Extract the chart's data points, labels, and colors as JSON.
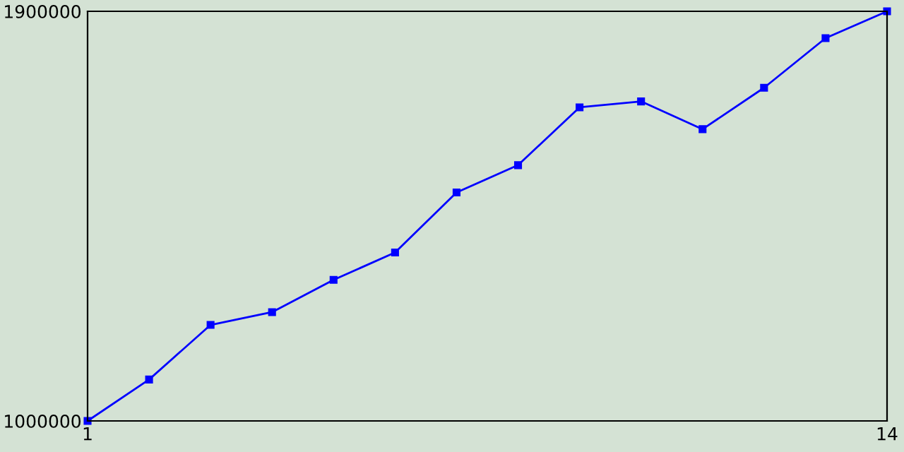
{
  "chart_data": {
    "type": "line",
    "x": [
      1,
      2,
      3,
      4,
      5,
      6,
      7,
      8,
      9,
      10,
      11,
      12,
      13,
      14
    ],
    "series": [
      {
        "color": "#0000ff",
        "values": [
          1000000,
          1091000,
          1211000,
          1239000,
          1310000,
          1370000,
          1502000,
          1562000,
          1689000,
          1702000,
          1641000,
          1732000,
          1841000,
          1900000
        ]
      }
    ],
    "xlim": [
      1,
      14
    ],
    "xticks": [
      1,
      14
    ],
    "ylim": [
      1000000,
      1900000
    ],
    "yticks": [
      1000000,
      1900000
    ],
    "grid": false,
    "legend": false,
    "marker": "square",
    "line_style": "solid"
  }
}
